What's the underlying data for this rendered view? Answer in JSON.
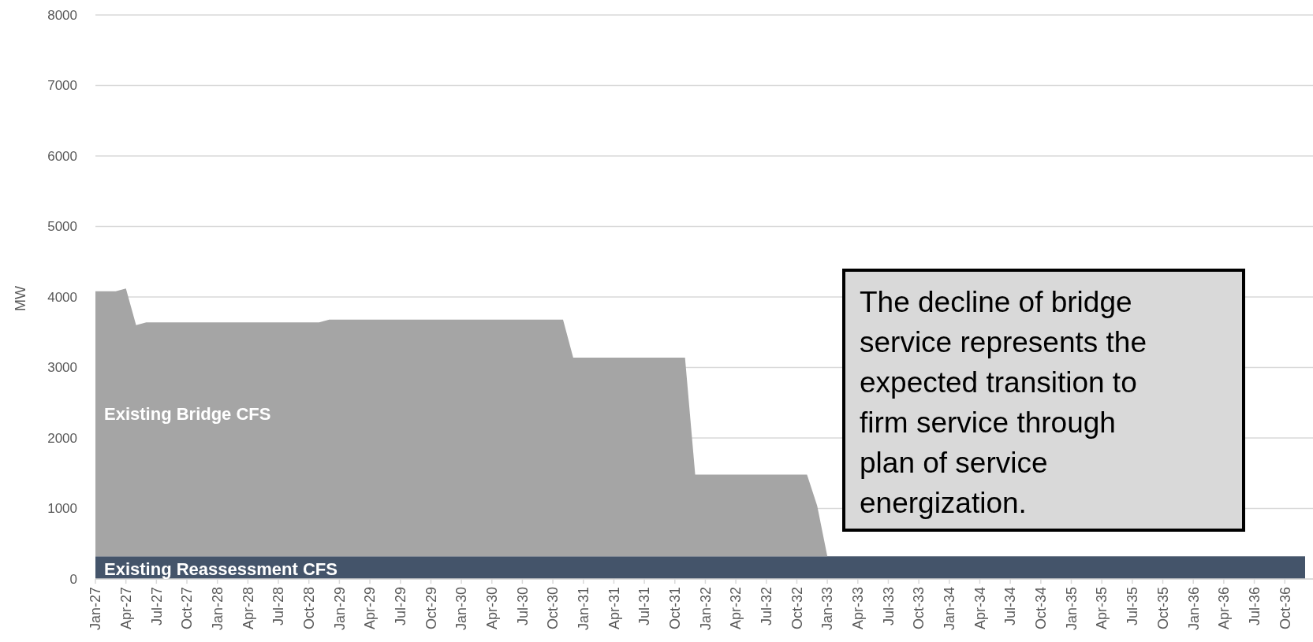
{
  "chart_data": {
    "type": "area",
    "stacked": true,
    "ylabel": "MW",
    "ylim": [
      0,
      8000
    ],
    "yticks": [
      0,
      1000,
      2000,
      3000,
      4000,
      5000,
      6000,
      7000,
      8000
    ],
    "grid": "y",
    "categories": [
      "Jan-27",
      null,
      null,
      "Apr-27",
      null,
      null,
      "Jul-27",
      null,
      null,
      "Oct-27",
      null,
      null,
      "Jan-28",
      null,
      null,
      "Apr-28",
      null,
      null,
      "Jul-28",
      null,
      null,
      "Oct-28",
      null,
      null,
      "Jan-29",
      null,
      null,
      "Apr-29",
      null,
      null,
      "Jul-29",
      null,
      null,
      "Oct-29",
      null,
      null,
      "Jan-30",
      null,
      null,
      "Apr-30",
      null,
      null,
      "Jul-30",
      null,
      null,
      "Oct-30",
      null,
      null,
      "Jan-31",
      null,
      null,
      "Apr-31",
      null,
      null,
      "Jul-31",
      null,
      null,
      "Oct-31",
      null,
      null,
      "Jan-32",
      null,
      null,
      "Apr-32",
      null,
      null,
      "Jul-32",
      null,
      null,
      "Oct-32",
      null,
      null,
      "Jan-33",
      null,
      null,
      "Apr-33",
      null,
      null,
      "Jul-33",
      null,
      null,
      "Oct-33",
      null,
      null,
      "Jan-34",
      null,
      null,
      "Apr-34",
      null,
      null,
      "Jul-34",
      null,
      null,
      "Oct-34",
      null,
      null,
      "Jan-35",
      null,
      null,
      "Apr-35",
      null,
      null,
      "Jul-35",
      null,
      null,
      "Oct-35",
      null,
      null,
      "Jan-36",
      null,
      null,
      "Apr-36",
      null,
      null,
      "Jul-36",
      null,
      null,
      "Oct-36",
      null,
      null
    ],
    "series": [
      {
        "name": "Existing Reassessment CFS",
        "color": "#44546a",
        "values": [
          320,
          320,
          320,
          320,
          320,
          320,
          320,
          320,
          320,
          320,
          320,
          320,
          320,
          320,
          320,
          320,
          320,
          320,
          320,
          320,
          320,
          320,
          320,
          320,
          320,
          320,
          320,
          320,
          320,
          320,
          320,
          320,
          320,
          320,
          320,
          320,
          320,
          320,
          320,
          320,
          320,
          320,
          320,
          320,
          320,
          320,
          320,
          320,
          320,
          320,
          320,
          320,
          320,
          320,
          320,
          320,
          320,
          320,
          320,
          320,
          320,
          320,
          320,
          320,
          320,
          320,
          320,
          320,
          320,
          320,
          320,
          320,
          320,
          320,
          320,
          320,
          320,
          320,
          320,
          320,
          320,
          320,
          320,
          320,
          320,
          320,
          320,
          320,
          320,
          320,
          320,
          320,
          320,
          320,
          320,
          320,
          320,
          320,
          320,
          320,
          320,
          320,
          320,
          320,
          320,
          320,
          320,
          320,
          320,
          320,
          320,
          320,
          320,
          320,
          320,
          320,
          320,
          320,
          320,
          320
        ]
      },
      {
        "name": "Existing Bridge CFS",
        "color": "#a5a5a5",
        "values": [
          3760,
          3760,
          3760,
          3800,
          3280,
          3320,
          3320,
          3320,
          3320,
          3320,
          3320,
          3320,
          3320,
          3320,
          3320,
          3320,
          3320,
          3320,
          3320,
          3320,
          3320,
          3320,
          3320,
          3360,
          3360,
          3360,
          3360,
          3360,
          3360,
          3360,
          3360,
          3360,
          3360,
          3360,
          3360,
          3360,
          3360,
          3360,
          3360,
          3360,
          3360,
          3360,
          3360,
          3360,
          3360,
          3360,
          3360,
          2820,
          2820,
          2820,
          2820,
          2820,
          2820,
          2820,
          2820,
          2820,
          2820,
          2820,
          2820,
          1160,
          1160,
          1160,
          1160,
          1160,
          1160,
          1160,
          1160,
          1160,
          1160,
          1160,
          1160,
          720,
          0,
          0,
          0,
          0,
          0,
          0,
          0,
          0,
          0,
          0,
          0,
          0,
          0,
          0,
          0,
          0,
          0,
          0,
          0,
          0,
          0,
          0,
          0,
          0,
          0,
          0,
          0,
          0,
          0,
          0,
          0,
          0,
          0,
          0,
          0,
          0,
          0,
          0,
          0,
          0,
          0,
          0,
          0,
          0,
          0,
          0,
          0,
          0
        ]
      }
    ],
    "annotations": [
      "The decline of bridge service represents the expected transition to firm service through plan of service energization."
    ]
  }
}
